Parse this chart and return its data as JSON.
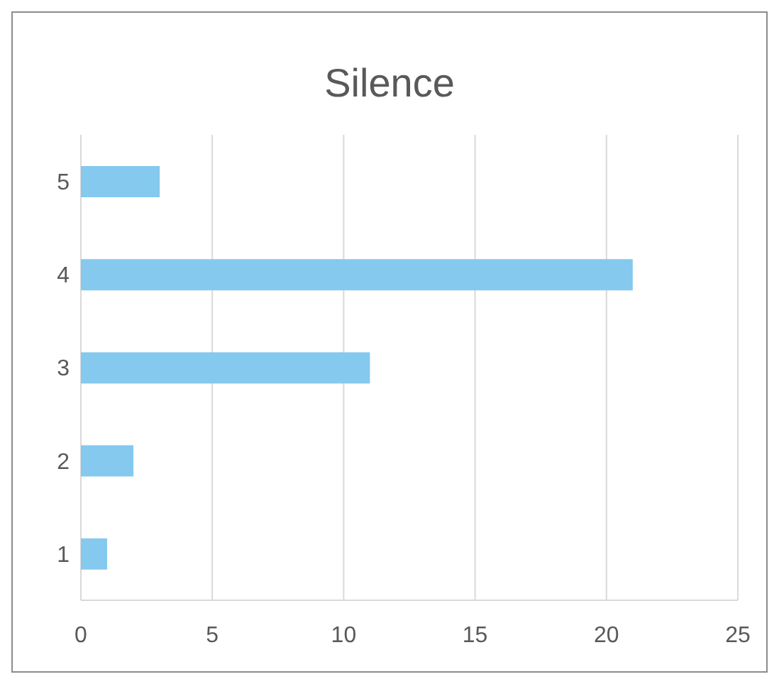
{
  "chart_data": {
    "type": "bar",
    "title": "Silence",
    "orientation": "horizontal",
    "categories": [
      "5",
      "4",
      "3",
      "2",
      "1"
    ],
    "values": [
      3,
      21,
      11,
      2,
      1
    ],
    "color": "#85c9ee",
    "xlim": [
      0,
      25
    ],
    "xticks": [
      0,
      5,
      10,
      15,
      20,
      25
    ],
    "grid": "x"
  }
}
